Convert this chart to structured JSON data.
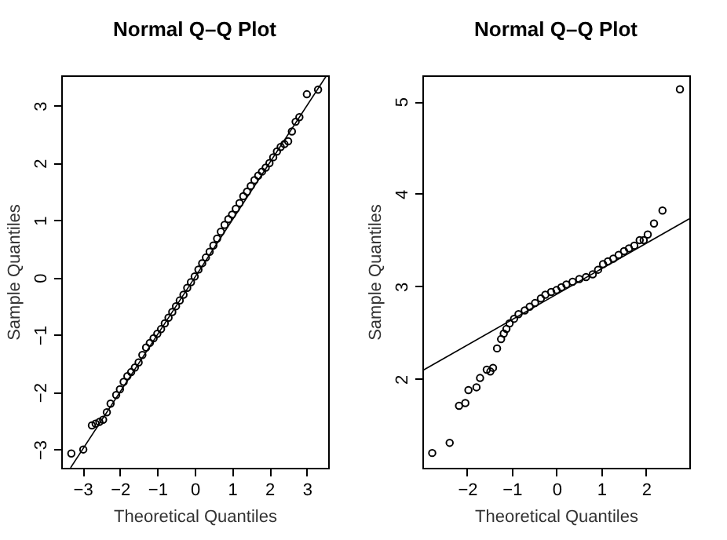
{
  "chart_data": [
    {
      "type": "scatter",
      "title": "Normal Q–Q Plot",
      "xlabel": "Theoretical Quantiles",
      "ylabel": "Sample Quantiles",
      "grid": false,
      "xlim": [
        -3.57,
        3.57
      ],
      "ylim": [
        -3.32,
        3.53
      ],
      "xticks": [
        {
          "value": -3,
          "label": "−3"
        },
        {
          "value": -2,
          "label": "−2"
        },
        {
          "value": -1,
          "label": "−1"
        },
        0,
        1,
        2,
        3
      ],
      "yticks": [
        {
          "value": -3,
          "label": "−3"
        },
        {
          "value": -2,
          "label": "−2"
        },
        {
          "value": -1,
          "label": "−1"
        },
        0,
        1,
        2,
        3
      ],
      "series": [
        {
          "type": "scatter",
          "marker": "circle",
          "color": "#000000",
          "x": [
            -3.3,
            -2.98,
            -2.75,
            -2.65,
            -2.55,
            -2.45,
            -2.35,
            -2.25,
            -2.1,
            -2.0,
            -1.9,
            -1.8,
            -1.7,
            -1.6,
            -1.5,
            -1.4,
            -1.3,
            -1.2,
            -1.1,
            -1.0,
            -0.9,
            -0.8,
            -0.7,
            -0.6,
            -0.5,
            -0.4,
            -0.3,
            -0.2,
            -0.1,
            0,
            0.1,
            0.2,
            0.3,
            0.4,
            0.5,
            0.6,
            0.7,
            0.8,
            0.9,
            1.0,
            1.1,
            1.2,
            1.3,
            1.4,
            1.5,
            1.6,
            1.7,
            1.8,
            1.9,
            2.0,
            2.1,
            2.2,
            2.3,
            2.4,
            2.5,
            2.6,
            2.7,
            2.8,
            3.0,
            3.3
          ],
          "values": [
            -3.07,
            -3.0,
            -2.58,
            -2.55,
            -2.52,
            -2.48,
            -2.35,
            -2.2,
            -2.05,
            -1.95,
            -1.82,
            -1.72,
            -1.65,
            -1.57,
            -1.48,
            -1.35,
            -1.22,
            -1.14,
            -1.06,
            -0.98,
            -0.9,
            -0.8,
            -0.7,
            -0.6,
            -0.5,
            -0.4,
            -0.3,
            -0.18,
            -0.08,
            0.02,
            0.14,
            0.25,
            0.35,
            0.45,
            0.56,
            0.68,
            0.8,
            0.92,
            1.02,
            1.1,
            1.2,
            1.3,
            1.42,
            1.5,
            1.6,
            1.7,
            1.78,
            1.85,
            1.92,
            2.0,
            2.1,
            2.2,
            2.28,
            2.33,
            2.38,
            2.55,
            2.72,
            2.8,
            3.2,
            3.28
          ]
        },
        {
          "type": "line",
          "color": "#000000",
          "x": [
            -3.32,
            3.53
          ],
          "values": [
            -3.32,
            3.53
          ]
        }
      ]
    },
    {
      "type": "scatter",
      "title": "Normal Q–Q Plot",
      "xlabel": "Theoretical Quantiles",
      "ylabel": "Sample Quantiles",
      "grid": false,
      "xlim": [
        -3.0,
        2.97
      ],
      "ylim": [
        1.04,
        5.28
      ],
      "xticks": [
        {
          "value": -2,
          "label": "−2"
        },
        {
          "value": -1,
          "label": "−1"
        },
        0,
        1,
        2
      ],
      "yticks": [
        2,
        3,
        4,
        5
      ],
      "series": [
        {
          "type": "scatter",
          "marker": "circle",
          "color": "#000000",
          "x": [
            -2.78,
            -2.39,
            -2.18,
            -2.04,
            -1.97,
            -1.79,
            -1.71,
            -1.56,
            -1.48,
            -1.42,
            -1.33,
            -1.24,
            -1.18,
            -1.12,
            -1.05,
            -0.95,
            -0.85,
            -0.71,
            -0.6,
            -0.48,
            -0.35,
            -0.25,
            -0.12,
            0,
            0.11,
            0.22,
            0.36,
            0.51,
            0.66,
            0.81,
            0.93,
            1.04,
            1.15,
            1.27,
            1.39,
            1.51,
            1.62,
            1.74,
            1.86,
            1.95,
            2.04,
            2.18,
            2.37,
            2.76
          ],
          "values": [
            1.2,
            1.31,
            1.71,
            1.74,
            1.88,
            1.91,
            2.01,
            2.1,
            2.08,
            2.12,
            2.33,
            2.43,
            2.49,
            2.54,
            2.6,
            2.65,
            2.7,
            2.74,
            2.78,
            2.82,
            2.87,
            2.91,
            2.94,
            2.96,
            2.99,
            3.02,
            3.05,
            3.08,
            3.1,
            3.13,
            3.18,
            3.24,
            3.27,
            3.3,
            3.34,
            3.38,
            3.41,
            3.44,
            3.5,
            3.5,
            3.56,
            3.68,
            3.82,
            5.13
          ]
        },
        {
          "type": "line",
          "color": "#000000",
          "x": [
            -3.0,
            2.97
          ],
          "values": [
            2.09,
            3.73
          ]
        }
      ]
    }
  ]
}
